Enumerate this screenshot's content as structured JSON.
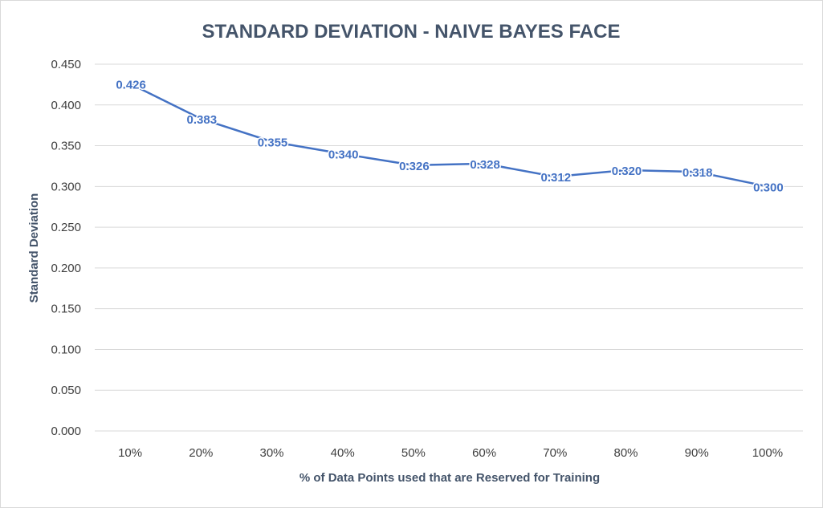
{
  "chart_data": {
    "type": "line",
    "title": "STANDARD DEVIATION - NAIVE BAYES FACE",
    "xlabel": "% of Data Points used that are Reserved for Training",
    "ylabel": "Standard Deviation",
    "categories": [
      "10%",
      "20%",
      "30%",
      "40%",
      "50%",
      "60%",
      "70%",
      "80%",
      "90%",
      "100%"
    ],
    "series": [
      {
        "values": [
          0.426,
          0.383,
          0.355,
          0.34,
          0.326,
          0.328,
          0.312,
          0.32,
          0.318,
          0.3
        ],
        "data_labels": [
          "0.426",
          "0.383",
          "0.355",
          "0.340",
          "0.326",
          "0.328",
          "0.312",
          "0.320",
          "0.318",
          "0.300"
        ],
        "color": "#4472c4"
      }
    ],
    "y_ticks": [
      "0.000",
      "0.050",
      "0.100",
      "0.150",
      "0.200",
      "0.250",
      "0.300",
      "0.350",
      "0.400",
      "0.450"
    ],
    "ylim": [
      0,
      0.45
    ],
    "grid": true,
    "legend": "none"
  }
}
